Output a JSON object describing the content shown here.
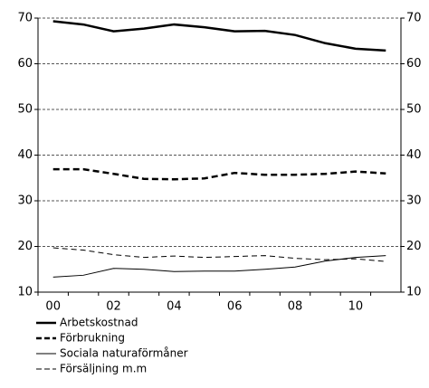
{
  "chart_data": {
    "type": "line",
    "categories": [
      "00",
      null,
      "02",
      null,
      "04",
      null,
      "06",
      null,
      "08",
      null,
      "10",
      null
    ],
    "series": [
      {
        "name": "Arbetskostnad",
        "color": "#000000",
        "width": 2.5,
        "dashed": false,
        "values": [
          69.3,
          68.6,
          67.1,
          67.7,
          68.6,
          68.0,
          67.1,
          67.2,
          66.3,
          64.5,
          63.3,
          62.9
        ]
      },
      {
        "name": "Förbrukning",
        "color": "#000000",
        "width": 2.5,
        "dashed": true,
        "values": [
          36.9,
          36.9,
          35.9,
          34.8,
          34.7,
          34.9,
          36.1,
          35.7,
          35.7,
          35.9,
          36.4,
          36.0
        ]
      },
      {
        "name": "Sociala naturaförmåner",
        "color": "#000000",
        "width": 1,
        "dashed": false,
        "values": [
          13.3,
          13.7,
          15.2,
          15.0,
          14.5,
          14.6,
          14.6,
          15.0,
          15.5,
          16.8,
          17.6,
          18.0
        ]
      },
      {
        "name": "Försäljning m.m",
        "color": "#000000",
        "width": 1,
        "dashed": true,
        "values": [
          19.7,
          19.2,
          18.2,
          17.6,
          17.9,
          17.6,
          17.8,
          18.0,
          17.4,
          17.1,
          17.3,
          16.7
        ]
      }
    ],
    "ylim": [
      10,
      70
    ],
    "yticks": [
      10,
      20,
      30,
      40,
      50,
      60,
      70
    ],
    "y2lim": [
      10,
      70
    ],
    "y2ticks": [
      10,
      20,
      30,
      40,
      50,
      60,
      70
    ],
    "grid": true
  }
}
